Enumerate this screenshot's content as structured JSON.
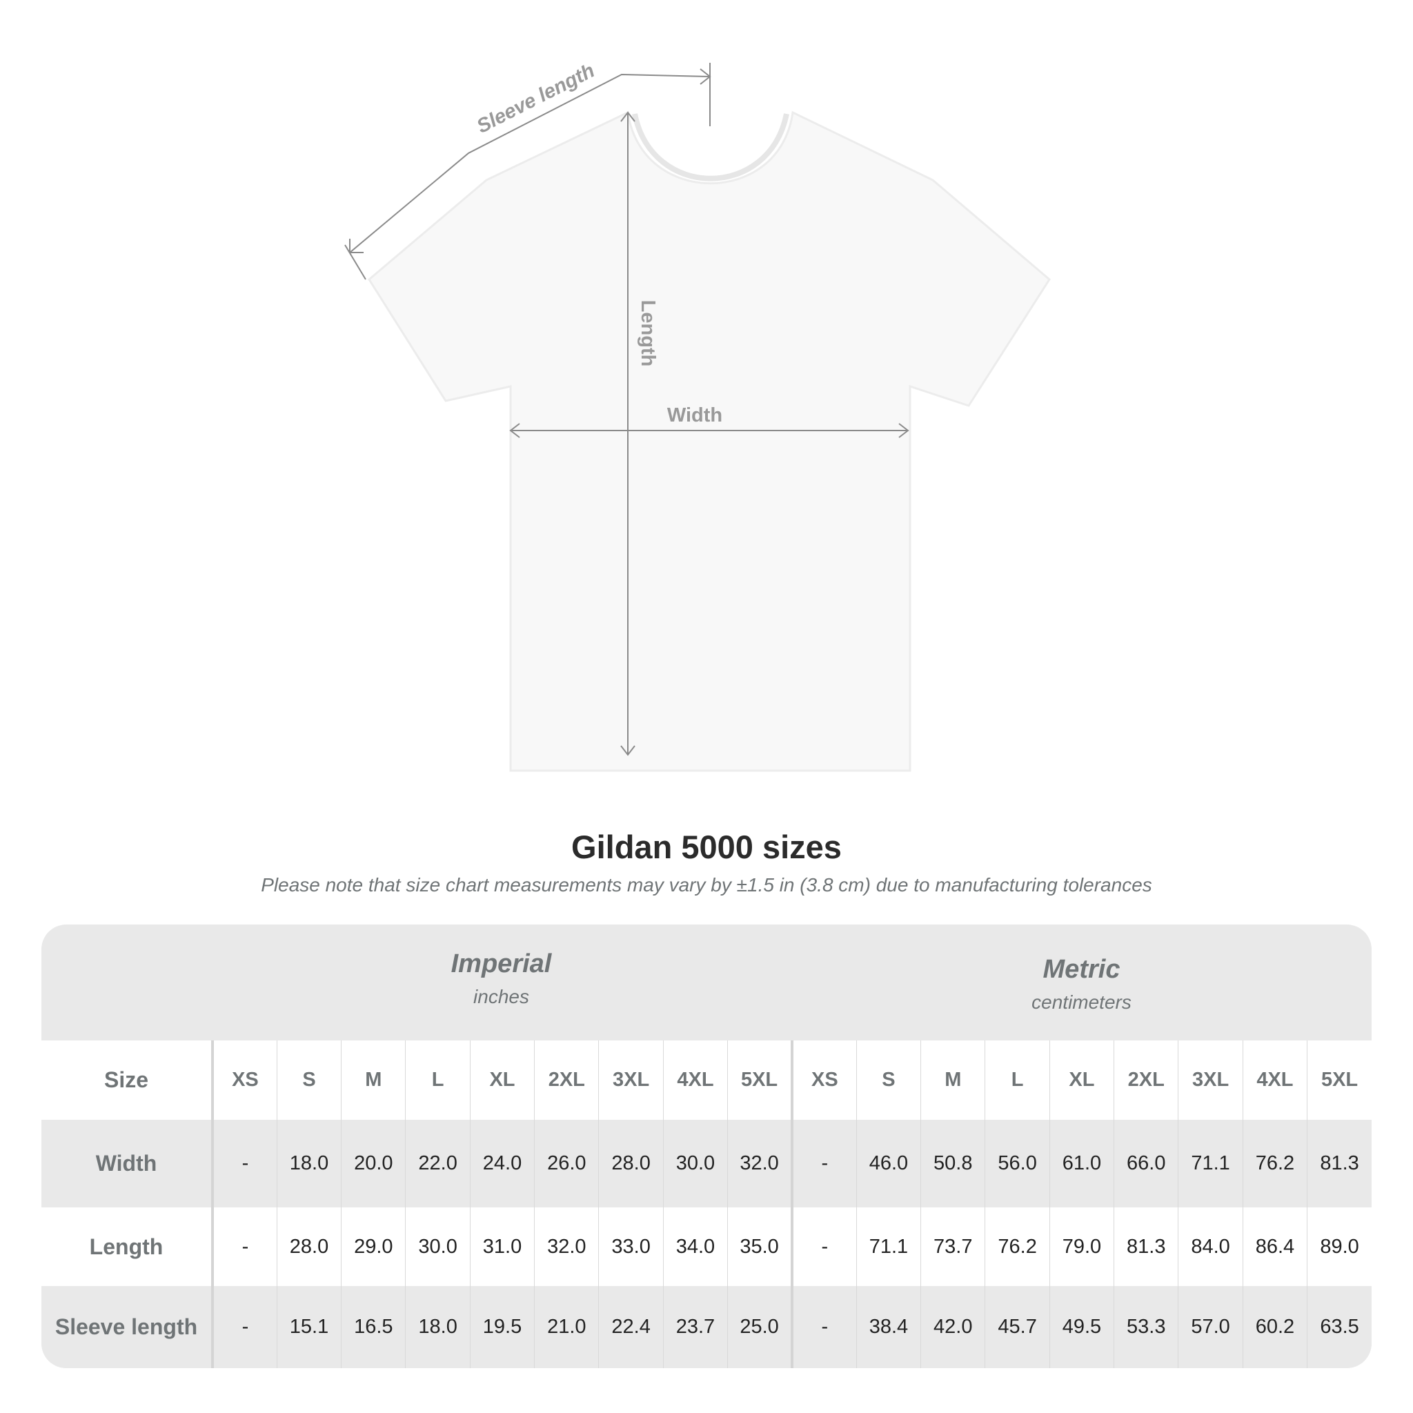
{
  "diagram": {
    "labels": {
      "sleeve_length": "Sleeve length",
      "length": "Length",
      "width": "Width"
    }
  },
  "title": "Gildan 5000 sizes",
  "note": "Please note that size chart measurements may vary by ±1.5 in (3.8 cm) due to manufacturing tolerances",
  "table": {
    "imperial": {
      "title": "Imperial",
      "unit": "inches"
    },
    "metric": {
      "title": "Metric",
      "unit": "centimeters"
    },
    "size_label": "Size",
    "sizes": [
      "XS",
      "S",
      "M",
      "L",
      "XL",
      "2XL",
      "3XL",
      "4XL",
      "5XL"
    ],
    "rows": [
      {
        "label": "Width",
        "imperial": [
          "-",
          "18.0",
          "20.0",
          "22.0",
          "24.0",
          "26.0",
          "28.0",
          "30.0",
          "32.0"
        ],
        "metric": [
          "-",
          "46.0",
          "50.8",
          "56.0",
          "61.0",
          "66.0",
          "71.1",
          "76.2",
          "81.3"
        ]
      },
      {
        "label": "Length",
        "imperial": [
          "-",
          "28.0",
          "29.0",
          "30.0",
          "31.0",
          "32.0",
          "33.0",
          "34.0",
          "35.0"
        ],
        "metric": [
          "-",
          "71.1",
          "73.7",
          "76.2",
          "79.0",
          "81.3",
          "84.0",
          "86.4",
          "89.0"
        ]
      },
      {
        "label": "Sleeve length",
        "imperial": [
          "-",
          "15.1",
          "16.5",
          "18.0",
          "19.5",
          "21.0",
          "22.4",
          "23.7",
          "25.0"
        ],
        "metric": [
          "-",
          "38.4",
          "42.0",
          "45.7",
          "49.5",
          "53.3",
          "57.0",
          "60.2",
          "63.5"
        ]
      }
    ]
  },
  "colors": {
    "label_gray": "#6f7476",
    "band_gray": "#e9e9e9",
    "measure_line": "#8a8a8a"
  }
}
